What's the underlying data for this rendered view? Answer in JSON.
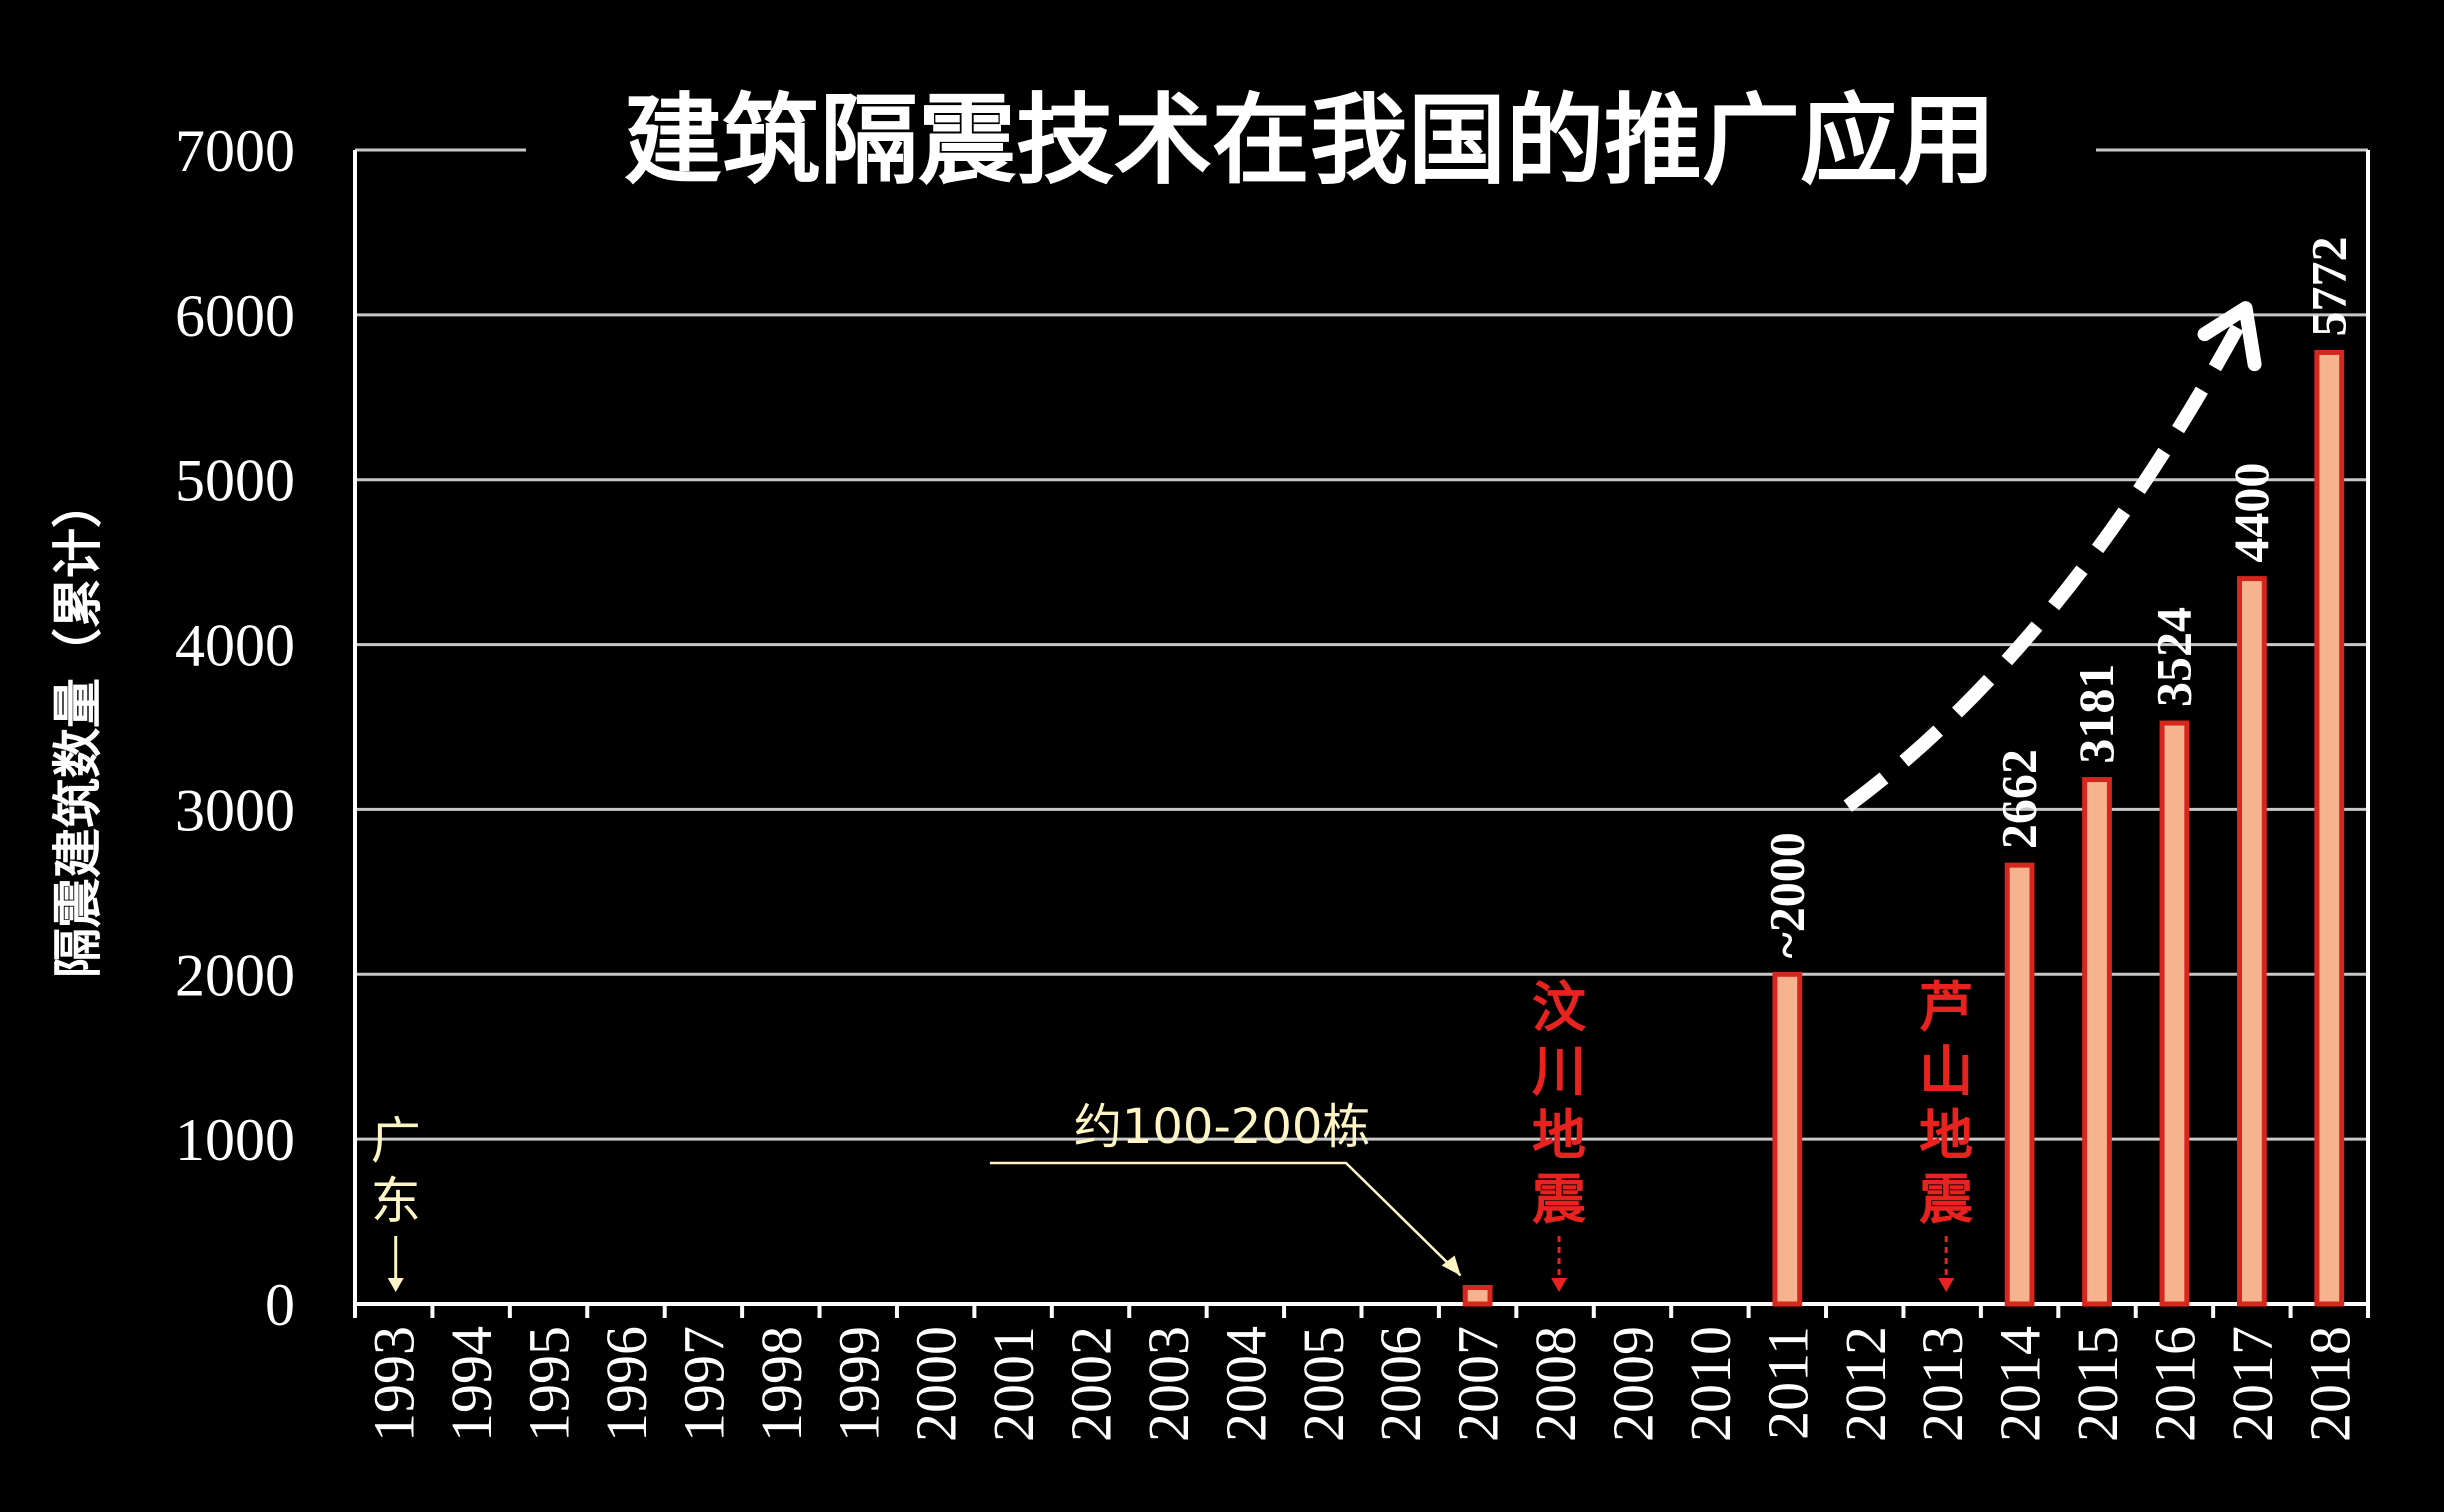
{
  "chart_data": {
    "type": "bar",
    "title": "建筑隔震技术在我国的推广应用",
    "ylabel": "隔震建筑数量（累计）",
    "xlabel": "",
    "ylim": [
      0,
      7000
    ],
    "yticks": [
      0,
      1000,
      2000,
      3000,
      4000,
      5000,
      6000,
      7000
    ],
    "ytick_labels": [
      "0",
      "1000",
      "2000",
      "3000",
      "4000",
      "5000",
      "6000",
      "7000"
    ],
    "grid": true,
    "categories": [
      "1993",
      "1994",
      "1995",
      "1996",
      "1997",
      "1998",
      "1999",
      "2000",
      "2001",
      "2002",
      "2003",
      "2004",
      "2005",
      "2006",
      "2007",
      "2008",
      "2009",
      "2010",
      "2011",
      "2012",
      "2013",
      "2014",
      "2015",
      "2016",
      "2017",
      "2018"
    ],
    "values": [
      null,
      null,
      null,
      null,
      null,
      null,
      null,
      null,
      null,
      null,
      null,
      null,
      null,
      null,
      100,
      null,
      null,
      null,
      2000,
      null,
      null,
      2662,
      3181,
      3524,
      4400,
      5772
    ],
    "data_labels": {
      "2011": "~2000",
      "2014": "2662",
      "2015": "3181",
      "2016": "3524",
      "2017": "4400",
      "2018": "5772"
    },
    "colors": {
      "bar_fill": "#f5b38f",
      "bar_stroke": "#d7261e",
      "quake": "#e8231f",
      "note": "#fff4c4",
      "background": "#000000"
    },
    "annotations": [
      {
        "category": "1993",
        "text_lines": [
          "广",
          "东"
        ],
        "color": "note"
      },
      {
        "category": "2007",
        "text": "约100-200栋",
        "color": "note"
      },
      {
        "category": "2008",
        "text_lines": [
          "汶",
          "川",
          "地",
          "震"
        ],
        "color": "quake"
      },
      {
        "category": "2013",
        "text_lines": [
          "芦",
          "山",
          "地",
          "震"
        ],
        "color": "quake"
      }
    ],
    "trend_arrow": {
      "from_category": "2012",
      "to_category": "2017",
      "style": "dashed",
      "color": "#ffffff"
    }
  }
}
